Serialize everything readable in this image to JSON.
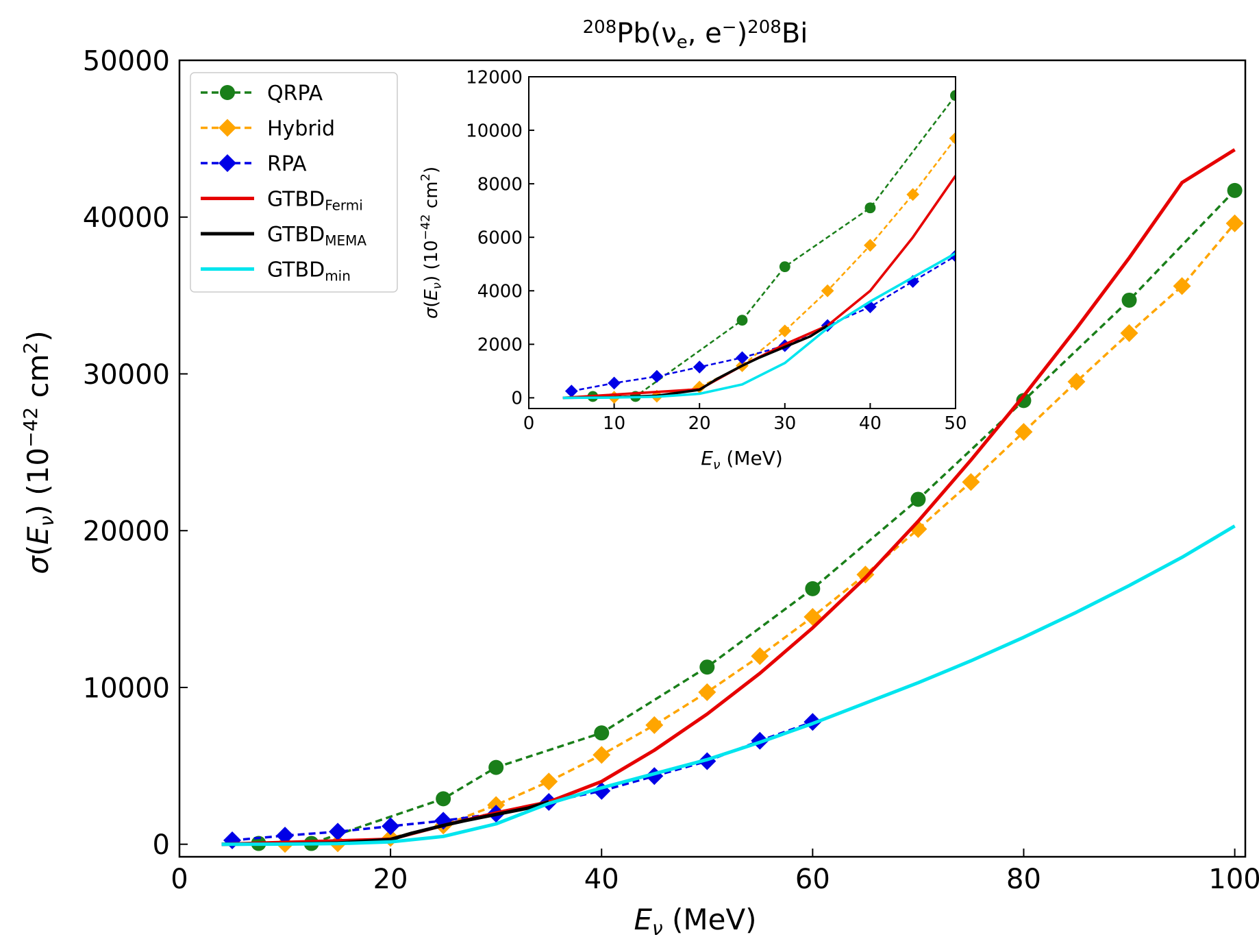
{
  "chart_data": {
    "type": "line",
    "title": "²⁰⁸Pb(νe, e⁻)²⁰⁸Bi",
    "xlabel": "Eν (MeV)",
    "ylabel": "σ(Eν)   (10⁻⁴² cm²)",
    "xlim": [
      0,
      101
    ],
    "ylim": [
      -800,
      50000
    ],
    "xticks": [
      0,
      20,
      40,
      60,
      80,
      100
    ],
    "yticks": [
      0,
      10000,
      20000,
      30000,
      40000,
      50000
    ],
    "legend_position": "upper-left",
    "grid": false,
    "series": [
      {
        "name": "QRPA",
        "color": "#1a7f1a",
        "style": "dashed",
        "marker": "circle",
        "x": [
          7.5,
          12.5,
          25,
          30,
          40,
          50,
          60,
          70,
          80,
          90,
          100
        ],
        "y": [
          50,
          50,
          2900,
          4900,
          7100,
          11300,
          16300,
          22000,
          28300,
          34700,
          41700
        ]
      },
      {
        "name": "Hybrid",
        "color": "#ffa500",
        "style": "dashed",
        "marker": "diamond",
        "x": [
          10,
          15,
          20,
          25,
          30,
          35,
          40,
          45,
          50,
          55,
          60,
          65,
          70,
          75,
          80,
          85,
          90,
          95,
          100
        ],
        "y": [
          20,
          60,
          400,
          1200,
          2500,
          4000,
          5700,
          7600,
          9700,
          12000,
          14500,
          17200,
          20100,
          23100,
          26300,
          29500,
          32600,
          35600,
          39600
        ]
      },
      {
        "name": "RPA",
        "color": "#0000e6",
        "style": "dashed",
        "marker": "diamond",
        "x": [
          5,
          10,
          15,
          20,
          25,
          30,
          35,
          40,
          45,
          50,
          55,
          60
        ],
        "y": [
          250,
          550,
          800,
          1150,
          1500,
          1950,
          2700,
          3400,
          4350,
          5300,
          6600,
          7800
        ]
      },
      {
        "name": "GTBD_Fermi",
        "label_main": "GTBD",
        "label_sub": "Fermi",
        "color": "#e60000",
        "style": "solid",
        "x": [
          4,
          20,
          25,
          30,
          35,
          40,
          45,
          50,
          55,
          60,
          65,
          70,
          75,
          80,
          85,
          90,
          95,
          100
        ],
        "y": [
          0,
          320,
          1200,
          2000,
          2700,
          4000,
          6000,
          8300,
          10900,
          13800,
          17000,
          20600,
          24500,
          28600,
          32900,
          37400,
          42200,
          44300
        ]
      },
      {
        "name": "GTBD_MEMA",
        "label_main": "GTBD",
        "label_sub": "MEMA",
        "color": "#000000",
        "style": "solid",
        "x": [
          4,
          10,
          15,
          20,
          22,
          25,
          27,
          30,
          33,
          35
        ],
        "y": [
          0,
          20,
          80,
          300,
          700,
          1200,
          1500,
          1900,
          2300,
          2700
        ]
      },
      {
        "name": "GTBD_min",
        "label_main": "GTBD",
        "label_sub": "min",
        "color": "#00e5ee",
        "style": "solid",
        "x": [
          4,
          10,
          15,
          20,
          25,
          30,
          35,
          40,
          45,
          50,
          55,
          60,
          65,
          70,
          75,
          80,
          85,
          90,
          95,
          100
        ],
        "y": [
          0,
          10,
          40,
          150,
          500,
          1300,
          2600,
          3600,
          4500,
          5400,
          6500,
          7700,
          9000,
          10300,
          11700,
          13200,
          14800,
          16500,
          18300,
          20300
        ]
      }
    ],
    "inset": {
      "xlabel": "Eν (MeV)",
      "ylabel": "σ(Eν)   (10⁻⁴² cm²)",
      "xlim": [
        0,
        50
      ],
      "ylim": [
        -400,
        12000
      ],
      "xticks": [
        0,
        10,
        20,
        30,
        40,
        50
      ],
      "yticks": [
        0,
        2000,
        4000,
        6000,
        8000,
        10000,
        12000
      ]
    }
  }
}
